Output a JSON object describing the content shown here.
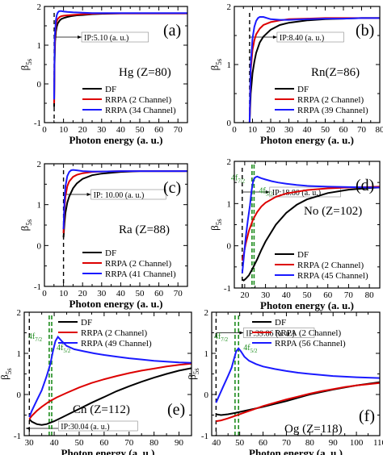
{
  "chart_data": [
    {
      "type": "line",
      "panel_label": "(a)",
      "element": "Hg (Z=80)",
      "xlabel": "Photon energy (a. u.)",
      "ylabel": "β",
      "ylabel_sub": "5s",
      "xlim": [
        0,
        75
      ],
      "ylim": [
        -1,
        2
      ],
      "xticks": [
        0,
        10,
        20,
        30,
        40,
        50,
        60,
        70
      ],
      "yticks": [
        -1,
        0,
        1,
        2
      ],
      "legend_position": "bottom-right",
      "threshold": {
        "x": 5.1,
        "label": "IP:5.10 (a. u.)"
      },
      "series": [
        {
          "name": "DF",
          "color": "#000000",
          "x": [
            5.1,
            5.3,
            5.6,
            6,
            6.5,
            7,
            8,
            9,
            10,
            12,
            14,
            17,
            20,
            25,
            30,
            40,
            50,
            60,
            75
          ],
          "y": [
            -0.6,
            0.5,
            1.1,
            1.35,
            1.48,
            1.56,
            1.64,
            1.68,
            1.7,
            1.73,
            1.75,
            1.77,
            1.78,
            1.8,
            1.81,
            1.82,
            1.82,
            1.82,
            1.82
          ]
        },
        {
          "name": "RRPA (2 Channel)",
          "color": "#dd0000",
          "x": [
            5.1,
            5.3,
            5.6,
            6,
            6.5,
            7,
            8,
            9,
            10,
            12,
            14,
            17,
            20,
            25,
            30,
            40,
            50,
            60,
            75
          ],
          "y": [
            -0.5,
            0.7,
            1.25,
            1.5,
            1.62,
            1.68,
            1.73,
            1.75,
            1.76,
            1.77,
            1.78,
            1.79,
            1.8,
            1.81,
            1.82,
            1.82,
            1.82,
            1.82,
            1.82
          ]
        },
        {
          "name": "RRPA (34 Channel)",
          "color": "#1a1aff",
          "x": [
            5.1,
            5.4,
            6,
            6.5,
            7,
            7.5,
            8,
            9,
            10,
            12,
            15,
            20,
            25,
            30,
            40,
            50,
            60,
            75
          ],
          "y": [
            -0.4,
            1.2,
            1.65,
            1.78,
            1.84,
            1.87,
            1.88,
            1.88,
            1.87,
            1.86,
            1.85,
            1.84,
            1.83,
            1.83,
            1.83,
            1.83,
            1.83,
            1.83
          ]
        }
      ]
    },
    {
      "type": "line",
      "panel_label": "(b)",
      "element": "Rn(Z=86)",
      "xlabel": "Photon energy (a. u.)",
      "ylabel": "β",
      "ylabel_sub": "5s",
      "xlim": [
        0,
        80
      ],
      "ylim": [
        0,
        2
      ],
      "xticks": [
        0,
        10,
        20,
        30,
        40,
        50,
        60,
        70,
        80
      ],
      "yticks": [
        0,
        1,
        2
      ],
      "legend_position": "bottom-right",
      "threshold": {
        "x": 8.4,
        "label": "IP:8.40 (a. u.)"
      },
      "series": [
        {
          "name": "DF",
          "color": "#000000",
          "x": [
            8.4,
            9,
            10,
            11,
            12,
            14,
            16,
            20,
            25,
            30,
            40,
            50,
            60,
            70,
            80
          ],
          "y": [
            0,
            0.5,
            0.85,
            1.05,
            1.2,
            1.38,
            1.48,
            1.6,
            1.68,
            1.72,
            1.76,
            1.78,
            1.79,
            1.8,
            1.8
          ]
        },
        {
          "name": "RRPA (2 Channel)",
          "color": "#dd0000",
          "x": [
            8.4,
            9,
            10,
            11,
            12,
            14,
            16,
            20,
            25,
            30,
            40,
            50,
            60,
            70,
            80
          ],
          "y": [
            0,
            0.9,
            1.25,
            1.42,
            1.52,
            1.62,
            1.68,
            1.73,
            1.76,
            1.78,
            1.79,
            1.8,
            1.8,
            1.8,
            1.8
          ]
        },
        {
          "name": "RRPA (39 Channel)",
          "color": "#1a1aff",
          "x": [
            8.4,
            9,
            10,
            11,
            12,
            13,
            14,
            16,
            18,
            20,
            25,
            30,
            40,
            50,
            60,
            70,
            80
          ],
          "y": [
            0,
            1.0,
            1.45,
            1.65,
            1.75,
            1.8,
            1.82,
            1.82,
            1.8,
            1.78,
            1.77,
            1.77,
            1.78,
            1.79,
            1.79,
            1.8,
            1.8
          ]
        }
      ]
    },
    {
      "type": "line",
      "panel_label": "(c)",
      "element": "Ra (Z=88)",
      "xlabel": "Photon energy (a. u.)",
      "ylabel": "β",
      "ylabel_sub": "5s",
      "xlim": [
        0,
        75
      ],
      "ylim": [
        -1,
        2
      ],
      "xticks": [
        0,
        10,
        20,
        30,
        40,
        50,
        60,
        70
      ],
      "yticks": [
        -1,
        0,
        1,
        2
      ],
      "legend_position": "bottom-right",
      "threshold": {
        "x": 10.0,
        "label": "IP: 10.00 (a. u.)"
      },
      "series": [
        {
          "name": "DF",
          "color": "#000000",
          "x": [
            10,
            10.5,
            11,
            12,
            13,
            15,
            17,
            20,
            25,
            30,
            40,
            50,
            60,
            75
          ],
          "y": [
            0.2,
            0.55,
            0.8,
            1.05,
            1.2,
            1.4,
            1.52,
            1.63,
            1.72,
            1.76,
            1.8,
            1.82,
            1.82,
            1.82
          ]
        },
        {
          "name": "RRPA (2 Channel)",
          "color": "#dd0000",
          "x": [
            10,
            10.5,
            11,
            12,
            13,
            15,
            17,
            20,
            25,
            30,
            40,
            50,
            60,
            75
          ],
          "y": [
            0.3,
            0.9,
            1.2,
            1.45,
            1.57,
            1.68,
            1.73,
            1.77,
            1.8,
            1.81,
            1.82,
            1.82,
            1.82,
            1.82
          ]
        },
        {
          "name": "RRPA (41 Channel)",
          "color": "#1a1aff",
          "x": [
            10,
            10.5,
            11,
            12,
            13,
            14,
            15,
            17,
            20,
            25,
            30,
            40,
            50,
            60,
            75
          ],
          "y": [
            0.4,
            1.1,
            1.45,
            1.7,
            1.8,
            1.84,
            1.85,
            1.84,
            1.82,
            1.81,
            1.81,
            1.82,
            1.82,
            1.82,
            1.82
          ]
        }
      ]
    },
    {
      "type": "line",
      "panel_label": "(d)",
      "element": "No (Z=102)",
      "xlabel": "Photon energy (a. u.)",
      "ylabel": "β",
      "ylabel_sub": "5s",
      "xlim": [
        15,
        85
      ],
      "ylim": [
        -1,
        2
      ],
      "xticks": [
        20,
        30,
        40,
        50,
        60,
        70,
        80
      ],
      "yticks": [
        -1,
        0,
        1,
        2
      ],
      "legend_position": "bottom-right",
      "threshold": {
        "x": 18.8,
        "label": "IP:18.80 (a. u.)"
      },
      "markers": [
        {
          "x": 23.5,
          "label": "4f",
          "sub": "7/2"
        },
        {
          "x": 24.5,
          "label": "4f",
          "sub": "5/2"
        }
      ],
      "series": [
        {
          "name": "DF",
          "color": "#000000",
          "x": [
            18.8,
            19.5,
            20.5,
            22,
            24,
            26,
            28,
            30,
            35,
            40,
            45,
            50,
            60,
            70,
            80,
            85
          ],
          "y": [
            -0.8,
            -0.82,
            -0.78,
            -0.7,
            -0.52,
            -0.32,
            -0.1,
            0.1,
            0.5,
            0.78,
            0.97,
            1.1,
            1.25,
            1.33,
            1.37,
            1.38
          ]
        },
        {
          "name": "RRPA (2 Channel)",
          "color": "#dd0000",
          "x": [
            18.8,
            19.5,
            20.5,
            22,
            24,
            26,
            28,
            30,
            35,
            40,
            50,
            60,
            70,
            80,
            85
          ],
          "y": [
            -0.35,
            -0.2,
            0.05,
            0.35,
            0.62,
            0.8,
            0.93,
            1.02,
            1.16,
            1.24,
            1.32,
            1.36,
            1.38,
            1.39,
            1.4
          ]
        },
        {
          "name": "RRPA (45 Channel)",
          "color": "#1a1aff",
          "x": [
            18.8,
            19.5,
            20.5,
            21.5,
            22.5,
            23.3,
            24.1,
            25,
            26,
            27,
            28,
            30,
            33,
            36,
            40,
            45,
            50,
            60,
            70,
            80,
            85
          ],
          "y": [
            -0.65,
            -0.3,
            0.2,
            0.6,
            0.95,
            1.3,
            1.55,
            1.62,
            1.64,
            1.62,
            1.6,
            1.57,
            1.53,
            1.5,
            1.47,
            1.44,
            1.42,
            1.4,
            1.39,
            1.38,
            1.38
          ]
        }
      ]
    },
    {
      "type": "line",
      "panel_label": "(e)",
      "element": "Cn (Z=112)",
      "xlabel": "Photon energy (a. u.)",
      "ylabel": "β",
      "ylabel_sub": "5s",
      "xlim": [
        28,
        95
      ],
      "ylim": [
        -1,
        2
      ],
      "xticks": [
        30,
        40,
        50,
        60,
        70,
        80,
        90
      ],
      "yticks": [
        -1,
        0,
        1,
        2
      ],
      "legend_position": "top-right",
      "threshold": {
        "x": 30.04,
        "label": "IP:30.04 (a. u.)"
      },
      "markers": [
        {
          "x": 38,
          "label": "4f",
          "sub": "7/2"
        },
        {
          "x": 39,
          "label": "4f",
          "sub": "5/2"
        }
      ],
      "series": [
        {
          "name": "DF",
          "color": "#000000",
          "x": [
            30.04,
            31,
            33,
            35,
            37,
            40,
            43,
            46,
            50,
            55,
            60,
            65,
            70,
            75,
            80,
            85,
            90,
            95
          ],
          "y": [
            -0.6,
            -0.66,
            -0.72,
            -0.74,
            -0.72,
            -0.65,
            -0.56,
            -0.47,
            -0.35,
            -0.2,
            -0.06,
            0.08,
            0.2,
            0.31,
            0.41,
            0.5,
            0.58,
            0.64
          ]
        },
        {
          "name": "RRPA (2 Channel)",
          "color": "#dd0000",
          "x": [
            30.04,
            31,
            33,
            35,
            38,
            41,
            45,
            50,
            55,
            60,
            65,
            70,
            75,
            80,
            85,
            90,
            95
          ],
          "y": [
            -0.6,
            -0.52,
            -0.4,
            -0.3,
            -0.17,
            -0.07,
            0.04,
            0.17,
            0.28,
            0.37,
            0.45,
            0.52,
            0.58,
            0.63,
            0.68,
            0.72,
            0.75
          ]
        },
        {
          "name": "RRPA (49 Channel)",
          "color": "#1a1aff",
          "x": [
            30.04,
            31,
            33,
            35,
            37,
            38.5,
            39.5,
            40.5,
            41.5,
            43,
            45,
            48,
            52,
            56,
            60,
            65,
            70,
            75,
            80,
            85,
            90,
            95
          ],
          "y": [
            -0.55,
            -0.4,
            -0.15,
            0.1,
            0.45,
            0.75,
            1.05,
            1.3,
            1.4,
            1.3,
            1.18,
            1.1,
            1.05,
            1.0,
            0.96,
            0.92,
            0.88,
            0.85,
            0.82,
            0.8,
            0.78,
            0.77
          ]
        }
      ]
    },
    {
      "type": "line",
      "panel_label": "(f)",
      "element": "Og (Z=118)",
      "xlabel": "Photon energy (a. u.)",
      "ylabel": "β",
      "ylabel_sub": "5s",
      "xlim": [
        38,
        110
      ],
      "ylim": [
        -1,
        2
      ],
      "xticks": [
        40,
        50,
        60,
        70,
        80,
        90,
        100,
        110
      ],
      "yticks": [
        -1,
        0,
        1,
        2
      ],
      "legend_position": "top-right",
      "threshold": {
        "x": 39.86,
        "label": "IP:39.86 (a. u.)"
      },
      "markers": [
        {
          "x": 48,
          "label": "4f",
          "sub": "7/2"
        },
        {
          "x": 49.5,
          "label": "4f",
          "sub": "5/2"
        }
      ],
      "series": [
        {
          "name": "DF",
          "color": "#000000",
          "x": [
            39.86,
            42,
            45,
            48,
            52,
            56,
            60,
            65,
            70,
            75,
            80,
            85,
            90,
            95,
            100,
            105,
            110
          ],
          "y": [
            -0.48,
            -0.5,
            -0.48,
            -0.45,
            -0.4,
            -0.35,
            -0.3,
            -0.23,
            -0.16,
            -0.08,
            0.0,
            0.06,
            0.12,
            0.17,
            0.22,
            0.26,
            0.3
          ]
        },
        {
          "name": "RRPA (2 Channel)",
          "color": "#dd0000",
          "x": [
            39.86,
            42,
            45,
            48,
            52,
            56,
            60,
            65,
            70,
            75,
            80,
            85,
            90,
            95,
            100,
            105,
            110
          ],
          "y": [
            -0.65,
            -0.63,
            -0.58,
            -0.52,
            -0.44,
            -0.36,
            -0.28,
            -0.2,
            -0.12,
            -0.05,
            0.02,
            0.08,
            0.13,
            0.18,
            0.22,
            0.25,
            0.28
          ]
        },
        {
          "name": "RRPA (56 Channel)",
          "color": "#1a1aff",
          "x": [
            39.86,
            41,
            43,
            45,
            46.5,
            47.5,
            48.5,
            49.5,
            50.5,
            52,
            54,
            57,
            60,
            65,
            70,
            75,
            80,
            90,
            100,
            110
          ],
          "y": [
            -0.2,
            -0.05,
            0.2,
            0.45,
            0.65,
            0.85,
            1.05,
            1.12,
            1.05,
            0.92,
            0.82,
            0.74,
            0.68,
            0.62,
            0.57,
            0.53,
            0.5,
            0.45,
            0.42,
            0.4
          ]
        }
      ]
    }
  ]
}
